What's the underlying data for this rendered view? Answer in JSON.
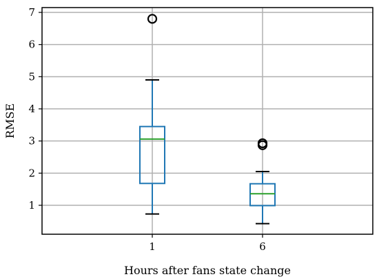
{
  "chart_data": {
    "type": "box",
    "xlabel": "Hours after fans state change",
    "ylabel": "RMSE",
    "ylim": [
      0.1,
      7.15
    ],
    "yticks": [
      1,
      2,
      3,
      4,
      5,
      6,
      7
    ],
    "grid": true,
    "categories": [
      "1",
      "6"
    ],
    "boxes": [
      {
        "label": "1",
        "whisker_low": 0.73,
        "q1": 1.68,
        "median": 3.06,
        "q3": 3.45,
        "whisker_high": 4.9,
        "outliers": [
          6.8
        ]
      },
      {
        "label": "6",
        "whisker_low": 0.43,
        "q1": 0.99,
        "median": 1.36,
        "q3": 1.67,
        "whisker_high": 2.05,
        "outliers": [
          2.87,
          2.93
        ]
      }
    ],
    "colors": {
      "box": "#1f77b4",
      "median": "#2ca02c",
      "grid": "#b0b0b0",
      "outlier": "#000000"
    }
  }
}
